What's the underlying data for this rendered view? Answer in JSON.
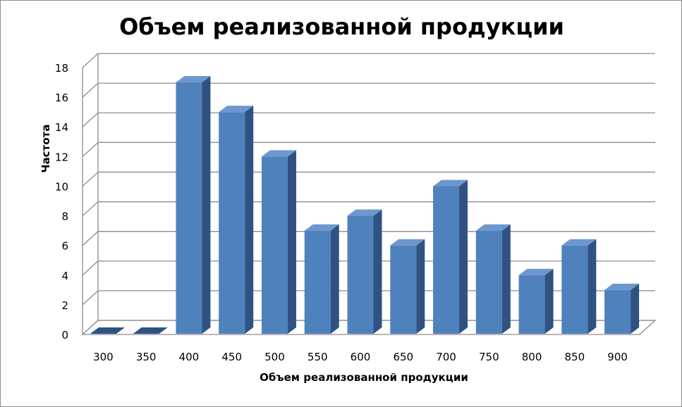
{
  "chart_data": {
    "type": "bar",
    "title": "Объем реализованной продукции",
    "xlabel": "Объем реализованной продукции",
    "ylabel": "Чaстота",
    "categories": [
      "300",
      "350",
      "400",
      "450",
      "500",
      "550",
      "600",
      "650",
      "700",
      "750",
      "800",
      "850",
      "900"
    ],
    "values": [
      0,
      0,
      17,
      15,
      12,
      7,
      8,
      6,
      10,
      7,
      4,
      6,
      3
    ],
    "ylim": [
      0,
      18
    ],
    "yticks": [
      "0",
      "2",
      "4",
      "6",
      "8",
      "10",
      "12",
      "14",
      "16",
      "18"
    ],
    "grid": true,
    "legend": "none",
    "style": "3d-column",
    "colors": {
      "front": "#4F81BD",
      "side": "#2F5283",
      "top": "#6C97CF",
      "grid": "#8C8C8C"
    }
  }
}
